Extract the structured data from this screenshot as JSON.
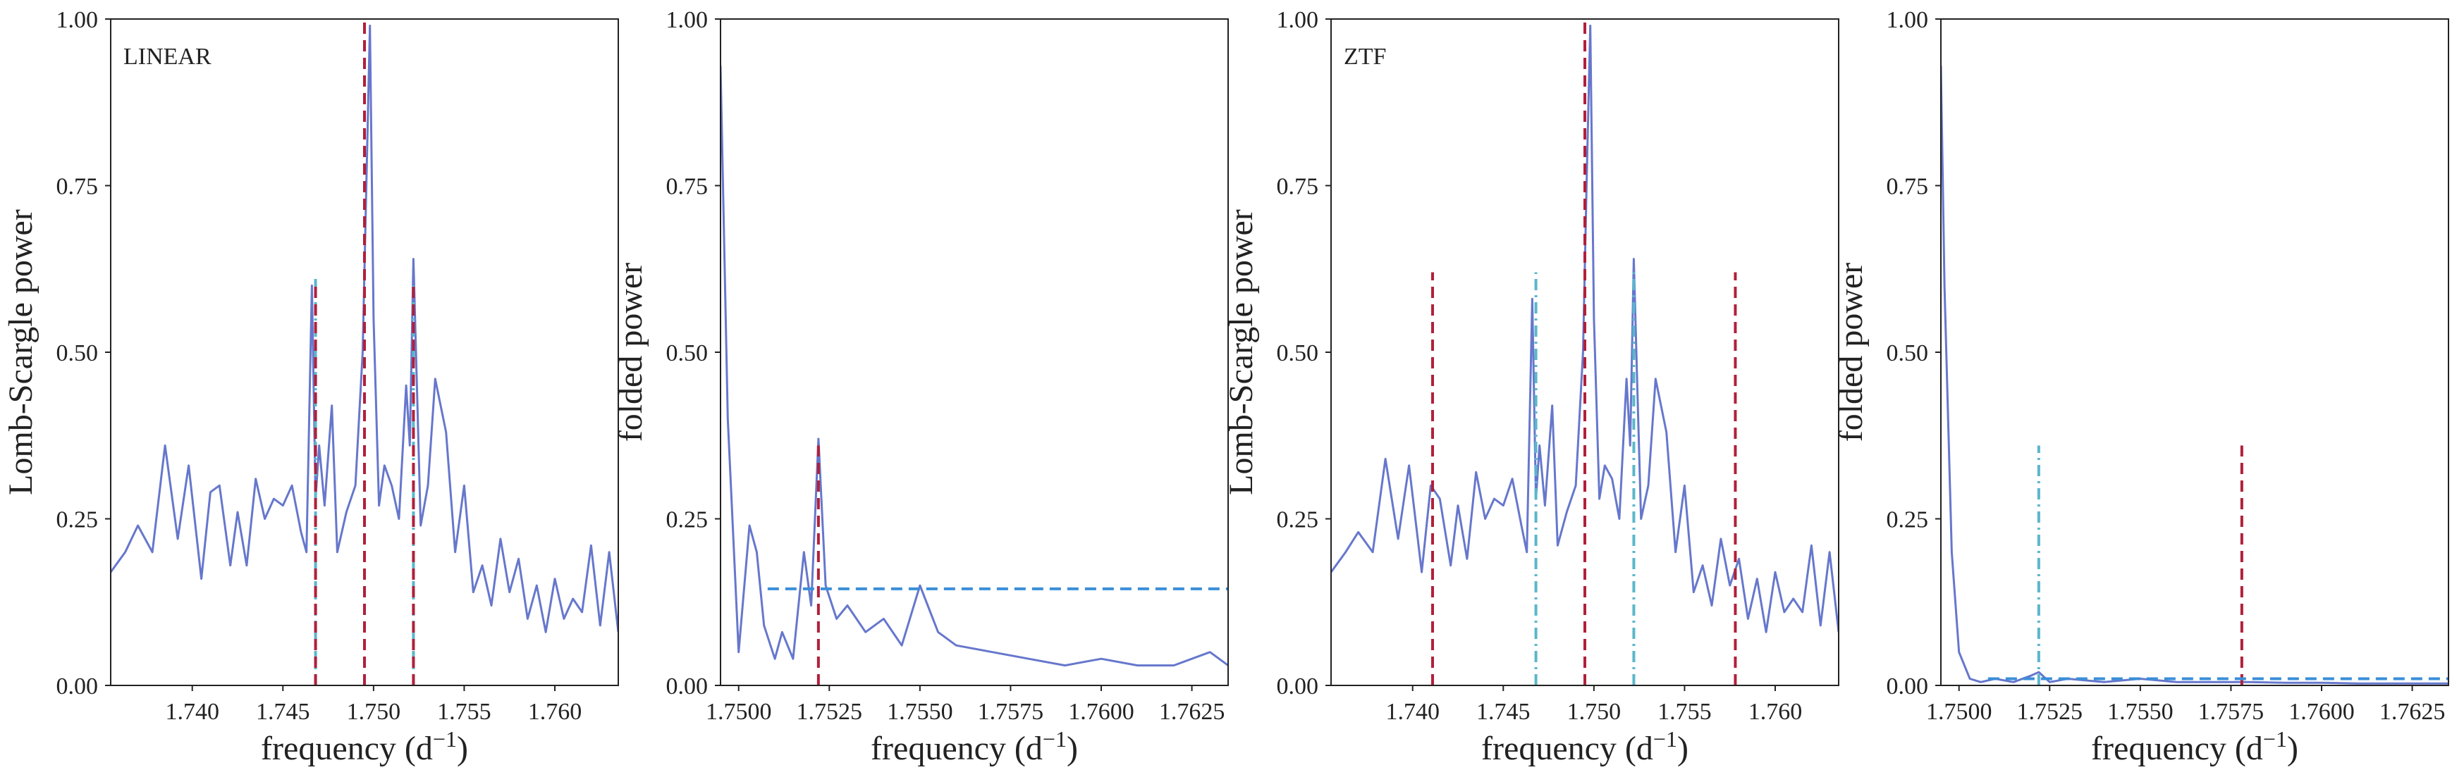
{
  "figure": {
    "colors": {
      "power_curve": "#6677cc",
      "red_marker": "#b0203a",
      "cyan_marker": "#5bb6cc",
      "threshold": "#3a8fd8",
      "axis": "#222222"
    }
  },
  "chart_data": [
    {
      "type": "line",
      "panel_label": "LINEAR",
      "xlabel_main": "frequency (d",
      "xlabel_sup": "−1",
      "xlabel_end": ")",
      "ylabel": "Lomb-Scargle power",
      "xlim": [
        1.7355,
        1.7635
      ],
      "ylim": [
        0,
        1
      ],
      "xticks": [
        1.74,
        1.745,
        1.75,
        1.755,
        1.76
      ],
      "xtick_labels": [
        "1.740",
        "1.745",
        "1.750",
        "1.755",
        "1.760"
      ],
      "yticks": [
        0,
        0.25,
        0.5,
        0.75,
        1.0
      ],
      "ytick_labels": [
        "0.00",
        "0.25",
        "0.50",
        "0.75",
        "1.00"
      ],
      "grid": false,
      "series": [
        {
          "style": "solid",
          "color_key": "power_curve",
          "x": [
            1.7355,
            1.7363,
            1.737,
            1.7378,
            1.7385,
            1.7392,
            1.7398,
            1.7405,
            1.741,
            1.7415,
            1.7421,
            1.7425,
            1.743,
            1.7435,
            1.744,
            1.7445,
            1.745,
            1.7455,
            1.746,
            1.7463,
            1.7466,
            1.7468,
            1.747,
            1.7473,
            1.7477,
            1.748,
            1.7485,
            1.749,
            1.7494,
            1.7496,
            1.7498,
            1.75,
            1.7503,
            1.7506,
            1.751,
            1.7514,
            1.7518,
            1.752,
            1.7522,
            1.7524,
            1.7526,
            1.753,
            1.7534,
            1.754,
            1.7545,
            1.755,
            1.7555,
            1.756,
            1.7565,
            1.757,
            1.7575,
            1.758,
            1.7585,
            1.759,
            1.7595,
            1.76,
            1.7605,
            1.761,
            1.7615,
            1.762,
            1.7625,
            1.763,
            1.7635
          ],
          "y": [
            0.17,
            0.2,
            0.24,
            0.2,
            0.36,
            0.22,
            0.33,
            0.16,
            0.29,
            0.3,
            0.18,
            0.26,
            0.18,
            0.31,
            0.25,
            0.28,
            0.27,
            0.3,
            0.23,
            0.2,
            0.6,
            0.28,
            0.36,
            0.27,
            0.42,
            0.2,
            0.26,
            0.3,
            0.5,
            0.75,
            0.99,
            0.55,
            0.27,
            0.33,
            0.3,
            0.25,
            0.45,
            0.36,
            0.64,
            0.44,
            0.24,
            0.3,
            0.46,
            0.38,
            0.2,
            0.3,
            0.14,
            0.18,
            0.12,
            0.22,
            0.14,
            0.19,
            0.1,
            0.15,
            0.08,
            0.16,
            0.1,
            0.13,
            0.11,
            0.21,
            0.09,
            0.2,
            0.08
          ]
        }
      ],
      "vlines": [
        {
          "x": 1.7495,
          "top": 1.0,
          "style": "dashed",
          "color_key": "red_marker"
        },
        {
          "x": 1.7468,
          "top": 0.61,
          "style": "dashdot",
          "color_key": "cyan_marker"
        },
        {
          "x": 1.7468,
          "top": 0.6,
          "style": "dashed",
          "color_key": "red_marker"
        },
        {
          "x": 1.7522,
          "top": 0.6,
          "style": "dashdot",
          "color_key": "cyan_marker"
        },
        {
          "x": 1.7522,
          "top": 0.6,
          "style": "dashed",
          "color_key": "red_marker"
        }
      ],
      "hlines": []
    },
    {
      "type": "line",
      "panel_label": "",
      "xlabel_main": "frequency (d",
      "xlabel_sup": "−1",
      "xlabel_end": ")",
      "ylabel": "folded power",
      "xlim": [
        1.7495,
        1.7635
      ],
      "ylim": [
        0,
        1
      ],
      "xticks": [
        1.75,
        1.7525,
        1.755,
        1.7575,
        1.76,
        1.7625
      ],
      "xtick_labels": [
        "1.7500",
        "1.7525",
        "1.7550",
        "1.7575",
        "1.7600",
        "1.7625"
      ],
      "yticks": [
        0,
        0.25,
        0.5,
        0.75,
        1.0
      ],
      "ytick_labels": [
        "0.00",
        "0.25",
        "0.50",
        "0.75",
        "1.00"
      ],
      "grid": false,
      "series": [
        {
          "style": "solid",
          "color_key": "power_curve",
          "x": [
            1.7495,
            1.7497,
            1.75,
            1.7503,
            1.7505,
            1.7507,
            1.751,
            1.7512,
            1.7515,
            1.7518,
            1.752,
            1.7522,
            1.7524,
            1.7527,
            1.753,
            1.7535,
            1.754,
            1.7545,
            1.755,
            1.7555,
            1.756,
            1.757,
            1.758,
            1.759,
            1.76,
            1.761,
            1.762,
            1.763,
            1.7635
          ],
          "y": [
            0.93,
            0.4,
            0.05,
            0.24,
            0.2,
            0.09,
            0.04,
            0.08,
            0.04,
            0.2,
            0.12,
            0.37,
            0.15,
            0.1,
            0.12,
            0.08,
            0.1,
            0.06,
            0.15,
            0.08,
            0.06,
            0.05,
            0.04,
            0.03,
            0.04,
            0.03,
            0.03,
            0.05,
            0.03
          ]
        }
      ],
      "vlines": [
        {
          "x": 1.7522,
          "top": 0.36,
          "style": "dashed",
          "color_key": "red_marker"
        }
      ],
      "hlines": [
        {
          "y": 0.145,
          "x0": 1.7508,
          "x1": 1.7635,
          "style": "dashed",
          "color_key": "threshold"
        }
      ]
    },
    {
      "type": "line",
      "panel_label": "ZTF",
      "xlabel_main": "frequency (d",
      "xlabel_sup": "−1",
      "xlabel_end": ")",
      "ylabel": "Lomb-Scargle power",
      "xlim": [
        1.7355,
        1.7635
      ],
      "ylim": [
        0,
        1
      ],
      "xticks": [
        1.74,
        1.745,
        1.75,
        1.755,
        1.76
      ],
      "xtick_labels": [
        "1.740",
        "1.745",
        "1.750",
        "1.755",
        "1.760"
      ],
      "yticks": [
        0,
        0.25,
        0.5,
        0.75,
        1.0
      ],
      "ytick_labels": [
        "0.00",
        "0.25",
        "0.50",
        "0.75",
        "1.00"
      ],
      "grid": false,
      "series": [
        {
          "style": "solid",
          "color_key": "power_curve",
          "x": [
            1.7355,
            1.7363,
            1.737,
            1.7378,
            1.7385,
            1.7392,
            1.7398,
            1.7405,
            1.741,
            1.7415,
            1.7421,
            1.7425,
            1.743,
            1.7435,
            1.744,
            1.7445,
            1.745,
            1.7455,
            1.746,
            1.7463,
            1.7466,
            1.7468,
            1.747,
            1.7473,
            1.7477,
            1.748,
            1.7485,
            1.749,
            1.7494,
            1.7496,
            1.7498,
            1.75,
            1.7503,
            1.7506,
            1.751,
            1.7514,
            1.7518,
            1.752,
            1.7522,
            1.7524,
            1.7526,
            1.753,
            1.7534,
            1.754,
            1.7545,
            1.755,
            1.7555,
            1.756,
            1.7565,
            1.757,
            1.7575,
            1.758,
            1.7585,
            1.759,
            1.7595,
            1.76,
            1.7605,
            1.761,
            1.7615,
            1.762,
            1.7625,
            1.763,
            1.7635
          ],
          "y": [
            0.17,
            0.2,
            0.23,
            0.2,
            0.34,
            0.22,
            0.33,
            0.17,
            0.3,
            0.28,
            0.18,
            0.27,
            0.19,
            0.32,
            0.25,
            0.28,
            0.27,
            0.31,
            0.24,
            0.2,
            0.58,
            0.28,
            0.36,
            0.27,
            0.42,
            0.21,
            0.26,
            0.3,
            0.5,
            0.76,
            0.99,
            0.55,
            0.28,
            0.33,
            0.31,
            0.25,
            0.46,
            0.36,
            0.64,
            0.44,
            0.25,
            0.3,
            0.46,
            0.38,
            0.2,
            0.3,
            0.14,
            0.18,
            0.12,
            0.22,
            0.15,
            0.19,
            0.1,
            0.16,
            0.08,
            0.17,
            0.11,
            0.13,
            0.11,
            0.21,
            0.09,
            0.2,
            0.08
          ]
        }
      ],
      "vlines": [
        {
          "x": 1.7495,
          "top": 1.0,
          "style": "dashed",
          "color_key": "red_marker"
        },
        {
          "x": 1.7411,
          "top": 0.62,
          "style": "dashed",
          "color_key": "red_marker"
        },
        {
          "x": 1.7578,
          "top": 0.62,
          "style": "dashed",
          "color_key": "red_marker"
        },
        {
          "x": 1.7468,
          "top": 0.62,
          "style": "dashdot",
          "color_key": "cyan_marker"
        },
        {
          "x": 1.7522,
          "top": 0.62,
          "style": "dashdot",
          "color_key": "cyan_marker"
        }
      ],
      "hlines": []
    },
    {
      "type": "line",
      "panel_label": "",
      "xlabel_main": "frequency (d",
      "xlabel_sup": "−1",
      "xlabel_end": ")",
      "ylabel": "folded power",
      "xlim": [
        1.7495,
        1.7635
      ],
      "ylim": [
        0,
        1
      ],
      "xticks": [
        1.75,
        1.7525,
        1.755,
        1.7575,
        1.76,
        1.7625
      ],
      "xtick_labels": [
        "1.7500",
        "1.7525",
        "1.7550",
        "1.7575",
        "1.7600",
        "1.7625"
      ],
      "yticks": [
        0,
        0.25,
        0.5,
        0.75,
        1.0
      ],
      "ytick_labels": [
        "0.00",
        "0.25",
        "0.50",
        "0.75",
        "1.00"
      ],
      "grid": false,
      "series": [
        {
          "style": "solid",
          "color_key": "power_curve",
          "x": [
            1.7495,
            1.7496,
            1.7498,
            1.75,
            1.7503,
            1.7506,
            1.751,
            1.7515,
            1.752,
            1.7522,
            1.7525,
            1.753,
            1.754,
            1.755,
            1.756,
            1.757,
            1.758,
            1.759,
            1.76,
            1.761,
            1.762,
            1.763,
            1.7635
          ],
          "y": [
            0.93,
            0.6,
            0.2,
            0.05,
            0.01,
            0.005,
            0.01,
            0.005,
            0.015,
            0.02,
            0.005,
            0.01,
            0.005,
            0.01,
            0.005,
            0.005,
            0.005,
            0.004,
            0.004,
            0.003,
            0.003,
            0.003,
            0.003
          ]
        }
      ],
      "vlines": [
        {
          "x": 1.7522,
          "top": 0.36,
          "style": "dashdot",
          "color_key": "cyan_marker"
        },
        {
          "x": 1.7578,
          "top": 0.36,
          "style": "dashed",
          "color_key": "red_marker"
        }
      ],
      "hlines": [
        {
          "y": 0.01,
          "x0": 1.7508,
          "x1": 1.7635,
          "style": "dashed",
          "color_key": "threshold"
        }
      ]
    }
  ]
}
